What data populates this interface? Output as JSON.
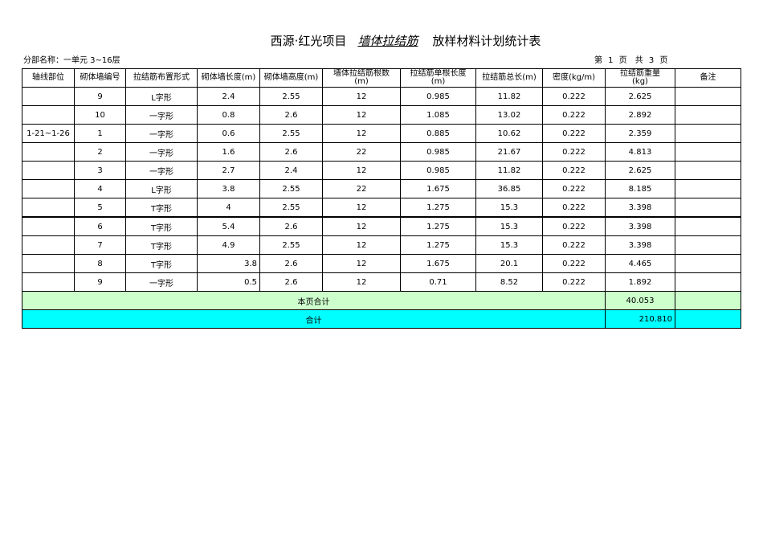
{
  "title": {
    "prefix": "西源·红光项目",
    "underlined": "墙体拉结筋",
    "suffix": "放样材料计划统计表"
  },
  "subtitle": "分部名称：一单元 3~16层",
  "page_info": "第 1 页　共 3 页",
  "columns": [
    "轴线部位",
    "砌体墙编号",
    "拉结筋布置形式",
    "砌体墙长度(m)",
    "砌体墙高度(m)",
    "墙体拉结筋根数(m)",
    "拉结筋单根长度(m)",
    "拉结筋总长(m)",
    "密度(kg/m)",
    "拉结筋重量(kg)",
    "备注"
  ],
  "rows": [
    [
      "",
      "9",
      "L字形",
      "2.4",
      "2.55",
      "12",
      "0.985",
      "11.82",
      "0.222",
      "2.625",
      ""
    ],
    [
      "",
      "10",
      "一字形",
      "0.8",
      "2.6",
      "12",
      "1.085",
      "13.02",
      "0.222",
      "2.892",
      ""
    ],
    [
      "1-21~1-26",
      "1",
      "一字形",
      "0.6",
      "2.55",
      "12",
      "0.885",
      "10.62",
      "0.222",
      "2.359",
      ""
    ],
    [
      "",
      "2",
      "一字形",
      "1.6",
      "2.6",
      "22",
      "0.985",
      "21.67",
      "0.222",
      "4.813",
      ""
    ],
    [
      "",
      "3",
      "一字形",
      "2.7",
      "2.4",
      "12",
      "0.985",
      "11.82",
      "0.222",
      "2.625",
      ""
    ],
    [
      "",
      "4",
      "L字形",
      "3.8",
      "2.55",
      "22",
      "1.675",
      "36.85",
      "0.222",
      "8.185",
      ""
    ],
    [
      "",
      "5",
      "T字形",
      "4",
      "2.55",
      "12",
      "1.275",
      "15.3",
      "0.222",
      "3.398",
      ""
    ],
    [
      "",
      "6",
      "T字形",
      "5.4",
      "2.6",
      "12",
      "1.275",
      "15.3",
      "0.222",
      "3.398",
      ""
    ],
    [
      "",
      "7",
      "T字形",
      "4.9",
      "2.55",
      "12",
      "1.275",
      "15.3",
      "0.222",
      "3.398",
      ""
    ],
    [
      "",
      "8",
      "T字形",
      "3.8",
      "2.6",
      "12",
      "1.675",
      "20.1",
      "0.222",
      "4.465",
      ""
    ],
    [
      "",
      "9",
      "一字形",
      "0.5",
      "2.6",
      "12",
      "0.71",
      "8.52",
      "0.222",
      "1.892",
      ""
    ]
  ],
  "subtotal": {
    "label": "本页合计",
    "weight": "40.053",
    "remark": ""
  },
  "total": {
    "label": "合计",
    "weight": "210.810",
    "remark": ""
  },
  "colors": {
    "subtotal_bg": "#ccffcc",
    "total_bg": "#00ffff"
  }
}
